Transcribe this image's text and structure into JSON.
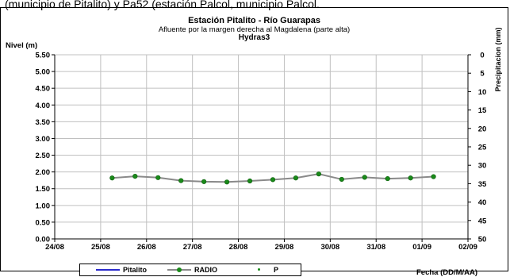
{
  "top_caption": "(municipio de Pitalito) y Pa52 (estación Palcol, municipio Palcol.",
  "chart_data": {
    "type": "line",
    "title": "Estación Pitalito  - Río Guarapas",
    "subtitle": "Afluente por la margen derecha al Magdalena (parte alta)",
    "subtitle2": "Hydras3",
    "ylabel": "Nivel (m)",
    "y2label": "Precipitacion (mm)",
    "xlabel": "Fecha (DD/M/AA)",
    "ylim": [
      0,
      5.5
    ],
    "y2lim": [
      0,
      50
    ],
    "y2_inverted": true,
    "x_ticks": [
      "24/08",
      "25/08",
      "26/08",
      "27/08",
      "28/08",
      "29/08",
      "30/08",
      "31/08",
      "01/09",
      "02/09"
    ],
    "y_ticks": [
      "0.00",
      "0.50",
      "1.00",
      "1.50",
      "2.00",
      "2.50",
      "3.00",
      "3.50",
      "4.00",
      "4.50",
      "5.00",
      "5.50"
    ],
    "y2_ticks": [
      "0",
      "5",
      "10",
      "15",
      "20",
      "25",
      "30",
      "35",
      "40",
      "45",
      "50"
    ],
    "grid": true,
    "legend_position": "bottom-left",
    "series": [
      {
        "name": "Pitalito",
        "color": "#2a2acc",
        "x": [],
        "values": []
      },
      {
        "name": "RADIO",
        "color": "#1a8a1a",
        "line_color": "#8a8a8a",
        "x": [
          1.25,
          1.75,
          2.25,
          2.75,
          3.25,
          3.75,
          4.25,
          4.75,
          5.25,
          5.75,
          6.25,
          6.75,
          7.25,
          7.75,
          8.25
        ],
        "values": [
          1.82,
          1.87,
          1.83,
          1.74,
          1.71,
          1.7,
          1.73,
          1.77,
          1.82,
          1.94,
          1.78,
          1.84,
          1.8,
          1.82,
          1.86
        ]
      },
      {
        "name": "P",
        "color": "#1a8a1a",
        "x": [],
        "values": []
      }
    ]
  }
}
